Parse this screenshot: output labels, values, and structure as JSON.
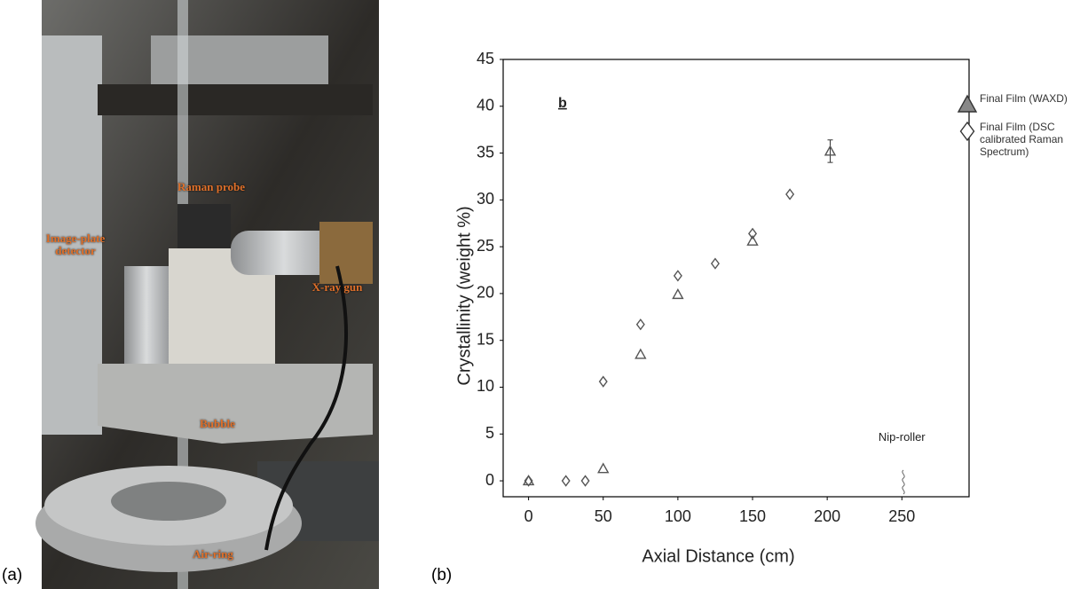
{
  "figure": {
    "panel_labels": [
      "(a)",
      "(b)"
    ],
    "photo_labels": [
      "Raman probe",
      "Image-plate detector",
      "X-ray gun",
      "Bubble",
      "Air-ring"
    ]
  },
  "chart_data": {
    "type": "scatter",
    "xlabel": "Axial Distance (cm)",
    "ylabel": "Crystallinity (weight %)",
    "annotations": [
      "b",
      "Nip-roller"
    ],
    "xlim": [
      -17,
      295
    ],
    "ylim": [
      -1.7,
      45
    ],
    "xticks": [
      0,
      50,
      100,
      150,
      200,
      250
    ],
    "yticks": [
      0,
      5,
      10,
      15,
      20,
      25,
      30,
      35,
      40,
      45
    ],
    "series": [
      {
        "name": "Final Film (WAXD)",
        "marker": "triangle",
        "color": "#555555",
        "x": [
          0,
          50,
          75,
          100,
          150,
          202
        ],
        "values": [
          0,
          1.3,
          13.5,
          19.9,
          25.6,
          35.2
        ],
        "errors": [
          null,
          null,
          null,
          null,
          null,
          1.2
        ]
      },
      {
        "name": "Final Film (DSC calibrated Raman Spectrum)",
        "marker": "diamond",
        "color": "#555555",
        "x": [
          0,
          25,
          38,
          50,
          75,
          100,
          125,
          150,
          175
        ],
        "values": [
          0,
          0,
          0,
          10.6,
          16.7,
          21.9,
          23.2,
          26.4,
          30.6
        ]
      }
    ]
  }
}
